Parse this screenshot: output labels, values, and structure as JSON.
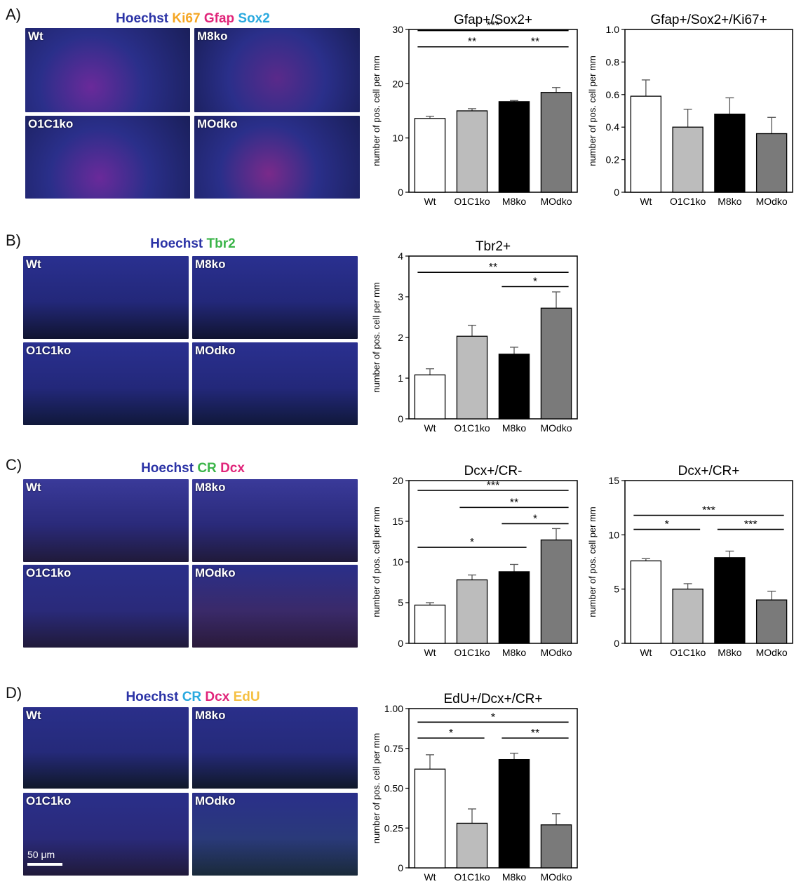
{
  "colors": {
    "hoechst": "#2b33a6",
    "ki67": "#f5a623",
    "gfap": "#e0257a",
    "sox2": "#29a9df",
    "tbr2": "#3cb54a",
    "cr_green": "#3cb54a",
    "dcx": "#e0257a",
    "cr_cyan": "#29a9df",
    "edu": "#f5c043",
    "bar_wt": "#ffffff",
    "bar_o1c1ko": "#bcbcbc",
    "bar_m8ko": "#000000",
    "bar_modko": "#7a7a7a"
  },
  "panels": [
    {
      "letter": "A)",
      "stains": [
        {
          "text": "Hoechst",
          "color": "#2b33a6"
        },
        {
          "text": "Ki67",
          "color": "#f5a623"
        },
        {
          "text": "Gfap",
          "color": "#e0257a"
        },
        {
          "text": "Sox2",
          "color": "#29a9df"
        }
      ],
      "tiles": [
        "Wt",
        "M8ko",
        "O1C1ko",
        "MOdko"
      ]
    },
    {
      "letter": "B)",
      "stains": [
        {
          "text": "Hoechst",
          "color": "#2b33a6"
        },
        {
          "text": "Tbr2",
          "color": "#3cb54a"
        }
      ],
      "tiles": [
        "Wt",
        "M8ko",
        "O1C1ko",
        "MOdko"
      ]
    },
    {
      "letter": "C)",
      "stains": [
        {
          "text": "Hoechst",
          "color": "#2b33a6"
        },
        {
          "text": "CR",
          "color": "#3cb54a"
        },
        {
          "text": "Dcx",
          "color": "#e0257a"
        }
      ],
      "tiles": [
        "Wt",
        "M8ko",
        "O1C1ko",
        "MOdko"
      ]
    },
    {
      "letter": "D)",
      "stains": [
        {
          "text": "Hoechst",
          "color": "#2b33a6"
        },
        {
          "text": "CR",
          "color": "#29a9df"
        },
        {
          "text": "Dcx",
          "color": "#e0257a"
        },
        {
          "text": "EdU",
          "color": "#f5c043"
        }
      ],
      "tiles": [
        "Wt",
        "M8ko",
        "O1C1ko",
        "MOdko"
      ],
      "scale_bar": "50 μm"
    }
  ],
  "chart_data": [
    {
      "type": "bar",
      "title": "Gfap+/Sox2+",
      "ylabel": "number of pos. cell per mm",
      "categories": [
        "Wt",
        "O1C1ko",
        "M8ko",
        "MOdko"
      ],
      "values": [
        13.6,
        15.0,
        16.7,
        18.4
      ],
      "errors": [
        0.4,
        0.4,
        0.2,
        0.9
      ],
      "ylim": [
        0,
        30
      ],
      "yticks": [
        "0",
        "10",
        "20",
        "30"
      ],
      "significance": [
        {
          "from": 0,
          "to": 3,
          "label": "***",
          "level": 29.8
        },
        {
          "from": 0,
          "to": 2,
          "label": "**",
          "level": 26.8
        },
        {
          "from": 2,
          "to": 3,
          "label": "**",
          "level": 26.8
        }
      ]
    },
    {
      "type": "bar",
      "title": "Gfap+/Sox2+/Ki67+",
      "ylabel": "number of pos. cell per mm",
      "categories": [
        "Wt",
        "O1C1ko",
        "M8ko",
        "MOdko"
      ],
      "values": [
        0.59,
        0.4,
        0.48,
        0.36
      ],
      "errors": [
        0.1,
        0.11,
        0.1,
        0.1
      ],
      "ylim": [
        0,
        1.0
      ],
      "yticks": [
        "0",
        "0.2",
        "0.4",
        "0.6",
        "0.8",
        "1.0"
      ],
      "significance": []
    },
    {
      "type": "bar",
      "title": "Tbr2+",
      "ylabel": "number of pos. cell per mm",
      "categories": [
        "Wt",
        "O1C1ko",
        "M8ko",
        "MOdko"
      ],
      "values": [
        1.08,
        2.03,
        1.59,
        2.72
      ],
      "errors": [
        0.15,
        0.27,
        0.17,
        0.4
      ],
      "ylim": [
        0,
        4
      ],
      "yticks": [
        "0",
        "1",
        "2",
        "3",
        "4"
      ],
      "significance": [
        {
          "from": 0,
          "to": 3,
          "label": "**",
          "level": 3.6
        },
        {
          "from": 2,
          "to": 3,
          "label": "*",
          "level": 3.25
        }
      ]
    },
    {
      "type": "bar",
      "title": "Dcx+/CR-",
      "ylabel": "number of pos. cell per mm",
      "categories": [
        "Wt",
        "O1C1ko",
        "M8ko",
        "MOdko"
      ],
      "values": [
        4.7,
        7.8,
        8.8,
        12.7
      ],
      "errors": [
        0.3,
        0.6,
        0.9,
        1.4
      ],
      "ylim": [
        0,
        20
      ],
      "yticks": [
        "0",
        "5",
        "10",
        "15",
        "20"
      ],
      "significance": [
        {
          "from": 0,
          "to": 3,
          "label": "***",
          "level": 18.8
        },
        {
          "from": 1,
          "to": 3,
          "label": "**",
          "level": 16.7
        },
        {
          "from": 2,
          "to": 3,
          "label": "*",
          "level": 14.7
        },
        {
          "from": 0,
          "to": 2,
          "label": "*",
          "level": 11.8
        }
      ]
    },
    {
      "type": "bar",
      "title": "Dcx+/CR+",
      "ylabel": "number of pos. cell per mm",
      "categories": [
        "Wt",
        "O1C1ko",
        "M8ko",
        "MOdko"
      ],
      "values": [
        7.6,
        5.0,
        7.9,
        4.0
      ],
      "errors": [
        0.2,
        0.5,
        0.6,
        0.8
      ],
      "ylim": [
        0,
        15
      ],
      "yticks": [
        "0",
        "5",
        "10",
        "15"
      ],
      "significance": [
        {
          "from": 0,
          "to": 3,
          "label": "***",
          "level": 11.8
        },
        {
          "from": 0,
          "to": 1,
          "label": "*",
          "level": 10.5
        },
        {
          "from": 2,
          "to": 3,
          "label": "***",
          "level": 10.5
        }
      ]
    },
    {
      "type": "bar",
      "title": "EdU+/Dcx+/CR+",
      "ylabel": "number of pos. cell per mm",
      "categories": [
        "Wt",
        "O1C1ko",
        "M8ko",
        "MOdko"
      ],
      "values": [
        0.62,
        0.28,
        0.68,
        0.27
      ],
      "errors": [
        0.09,
        0.09,
        0.04,
        0.07
      ],
      "ylim": [
        0,
        1.0
      ],
      "yticks": [
        "0",
        "0.25",
        "0.50",
        "0.75",
        "1.00"
      ],
      "significance": [
        {
          "from": 0,
          "to": 3,
          "label": "*",
          "level": 0.915
        },
        {
          "from": 0,
          "to": 1,
          "label": "*",
          "level": 0.815
        },
        {
          "from": 2,
          "to": 3,
          "label": "**",
          "level": 0.815
        }
      ]
    }
  ]
}
